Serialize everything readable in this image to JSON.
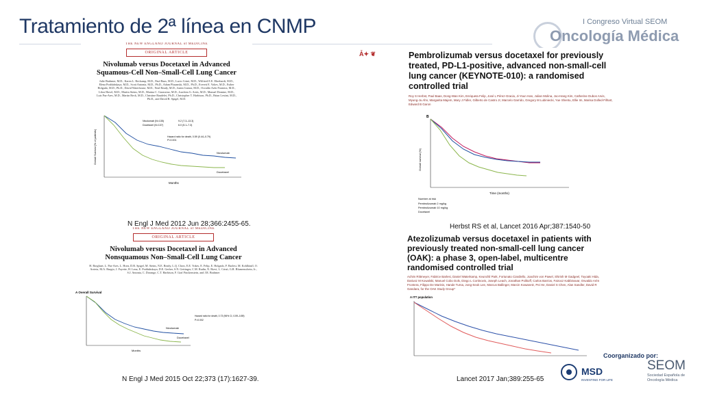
{
  "slide": {
    "title": "Tratamiento de 2ª línea en CNMP"
  },
  "brand": {
    "congress": "I Congreso Virtual SEOM",
    "name": "Oncología Médica"
  },
  "papers": [
    {
      "journal": "THE NEW ENGLAND JOURNAL of MEDICINE",
      "badge": "ORIGINAL ARTICLE",
      "title": "Nivolumab versus Docetaxel in Advanced Squamous-Cell Non–Small-Cell Lung Cancer",
      "authors": "Julie Brahmer, M.D., Karen L. Reckamp, M.D., Paul Baas, M.D., Lucio Crinò, M.D., Wilfried E.E. Eberhardt, M.D., Elena Poddubskaya, M.D., Scott Antonia, M.D., Ph.D., Adam Pluzanski, M.D., Ph.D., Everett E. Vokes, M.D., Esther Holgado, M.D., Ph.D., David Waterhouse, M.D., Neal Ready, M.D., Justin Gainor, M.D., Osvaldo Arén Frontera, M.D., Libor Havel, M.D., Martin Steins, M.D., Marina C. Garassino, M.D., Joachim G. Aerts, M.D., Manuel Domine, M.D., Luis Paz-Ares, M.D., Martin Reck, M.D., Christine Baudelet, Ph.D., Christopher T. Harbison, Ph.D., Brian Lestini, M.D., Ph.D., and David R. Spigel, M.D.",
      "caption": "N Engl J Med 2012 Jun 28;366:2455-65.",
      "curve_labels": [
        "Nivolumab",
        "Docetaxel"
      ],
      "legend_rows": [
        "Nivolumab (N=135)",
        "Docetaxel (N=137)"
      ],
      "median_os": [
        "9.2 (7.3–13.3)",
        "6.0 (5.1–7.3)"
      ],
      "hazard_ratio": "Hazard ratio for death, 0.59 (0.44–0.79)",
      "p_value": "P<0.001",
      "x_axis_label": "Months",
      "y_axis_label": "Overall Survival (% of patients)"
    },
    {
      "icons": "Ǡ✦ ❦",
      "title": "Pembrolizumab versus docetaxel for previously treated, PD-L1-positive, advanced non-small-cell lung cancer (KEYNOTE-010): a randomised controlled trial",
      "authors": "Roy S Herbst, Paul Baas, Dong-Wan Kim, Enriqueta Felip, José L Pérez-Gracia, Ji-Youn Han, Julian Molina, Joo-Hang Kim, Catherine Dubos Arvis, Myung-Ju Ahn, Margarita Majem, Mary J Fidler, Gilberto de Castro Jr, Marcelo Garrido, Gregory M Lubiniecki, Yue Shentu, Ellie Im, Marisa Dolled-Filhart, Edward B Garon",
      "caption": "Herbst RS et al, Lancet  2016 Apr;387:1540-50",
      "panel_label": "B",
      "x_axis_label": "Time (months)",
      "y_axis_label": "Overall survival (%)",
      "risk_header": "Number at risk",
      "risk_rows": [
        "Pembrolizumab 2 mg/kg",
        "Pembrolizumab 10 mg/kg",
        "Docetaxel"
      ]
    },
    {
      "journal": "THE NEW ENGLAND JOURNAL of MEDICINE",
      "badge": "ORIGINAL ARTICLE",
      "title": "Nivolumab versus Docetaxel in Advanced Nonsquamous Non–Small-Cell Lung Cancer",
      "authors": "H. Borghaei, L. Paz-Ares, L. Horn, D.R. Spigel, M. Steins, N.E. Ready, L.Q. Chow, E.E. Vokes, E. Felip, E. Holgado, F. Barlesi, M. Kohlhäufl, O. Arrieta, M.A. Burgio, J. Fayette, H. Lena, E. Poddubskaya, D.E. Gerber, S.N. Gettinger, C.M. Rudin, N. Rizvi, L. Crinò, G.R. Blumenschein, Jr., S.J. Antonia, C. Dorange, C.T. Harbison, F. Graf Finckenstein, and J.R. Brahmer",
      "caption": "N Engl J Med 2015 Oct 22;373 (17):1627-39.",
      "panel_label": "A  Overall Survival",
      "curve_labels": [
        "Nivolumab",
        "Docetaxel"
      ],
      "hazard_ratio": "Hazard ratio for death, 0.73 (96% CI, 0.59–0.89)",
      "p_value": "P=0.002",
      "x_axis_label": "Months"
    },
    {
      "title": "Atezolizumab versus docetaxel in patients with previously treated non-small-cell lung cancer (OAK): a phase 3, open-label, multicentre randomised controlled trial",
      "authors": "Achim Rittmeyer, Fabrice Barlesi, Daniel Waterkamp, Keunchil Park, Fortunato Ciardiello, Joachim von Pawel, Shirish M Gadgeel, Toyoaki Hida, Dariusz M Kowalski, Manuel Cobo Dols, Diego L Cortinovis, Joseph Leach, Jonathan Polikoff, Carlos Barrios, Fairooz Kabbinavar, Osvaldo Arén Frontera, Filippo De Marinis, Hande Turna, Jong-Seok Lee, Marcus Ballinger, Marcin Kowanetz, Pei He, Daniel S Chen, Alan Sandler, David R Gandara, for the OAK Study Group*",
      "caption": "Lancet  2017 Jan;389:255-65",
      "panel_label": "A  ITT population"
    }
  ],
  "sponsor": {
    "label": "Coorganizado por:",
    "msd": "MSD",
    "msd_tagline": "INVENTING FOR LIFE",
    "seom": "SEOM",
    "seom_full": "Sociedad Española de Oncología Médica"
  },
  "colors": {
    "title": "#1f3864",
    "nivolumab": "#1e4ea0",
    "docetaxel": "#8ab54a",
    "pembro2": "#1e4ea0",
    "pembro10": "#c2185b",
    "atezo": "#2a4fa8",
    "oak_docetaxel": "#e05a5a"
  }
}
